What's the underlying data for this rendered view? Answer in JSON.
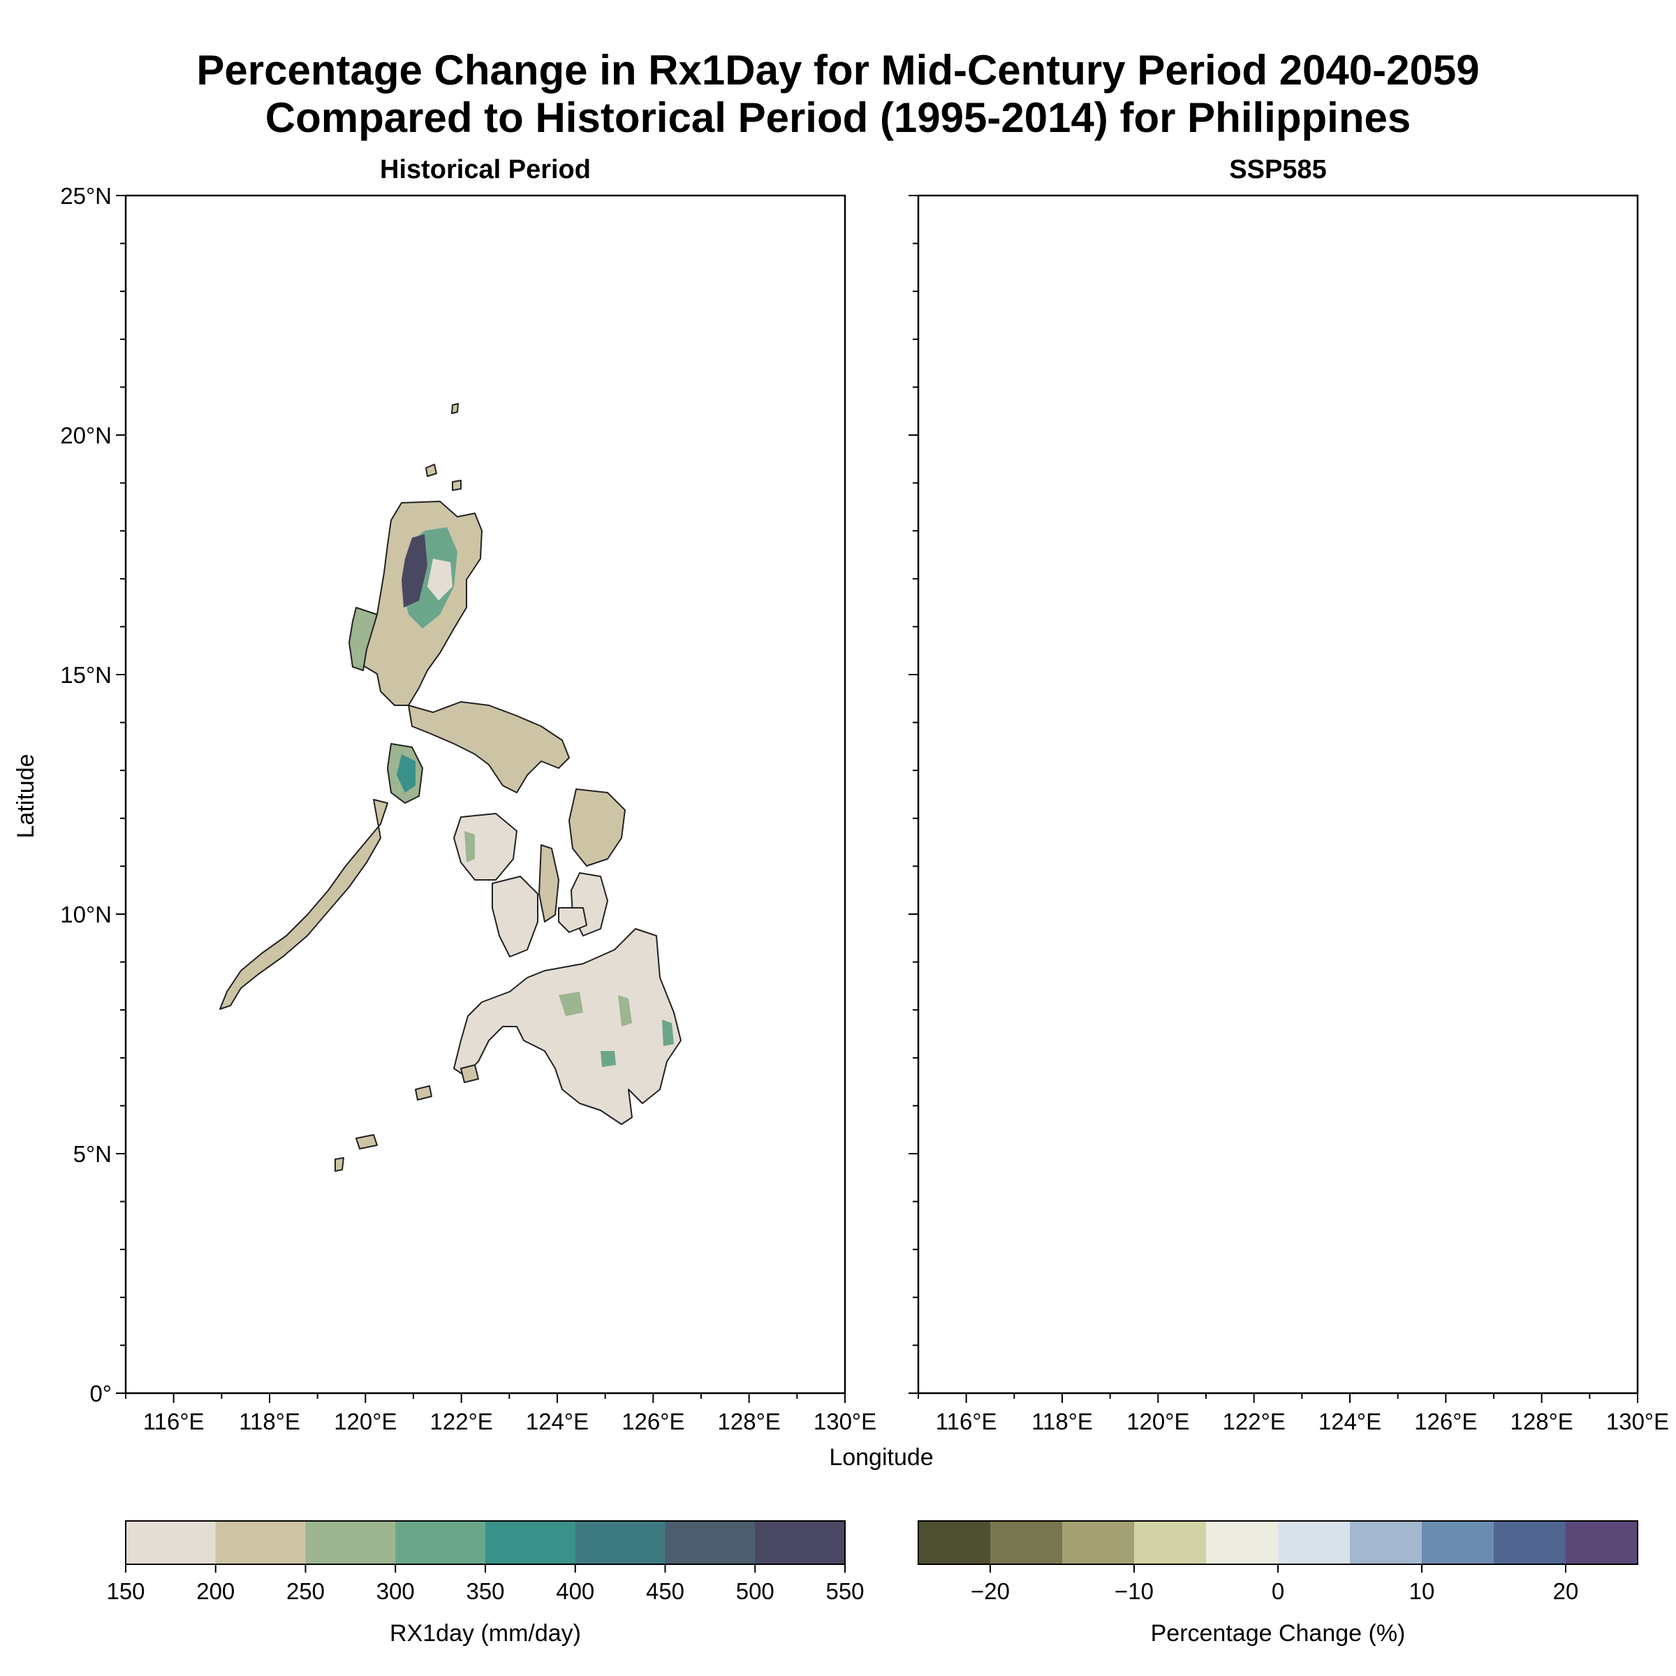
{
  "figure": {
    "title_line1": "Percentage Change in Rx1Day for Mid-Century Period 2040-2059",
    "title_line2": "Compared to Historical Period (1995-2014) for Philippines",
    "xlabel": "Longitude",
    "ylabel": "Latitude"
  },
  "panels": [
    {
      "title": "Historical Period"
    },
    {
      "title": "SSP585"
    }
  ],
  "axes": {
    "x_ticks": [
      "116°E",
      "118°E",
      "120°E",
      "122°E",
      "124°E",
      "126°E",
      "128°E",
      "130°E"
    ],
    "x_values": [
      116,
      118,
      120,
      122,
      124,
      126,
      128,
      130
    ],
    "y_ticks": [
      "0°",
      "5°N",
      "10°N",
      "15°N",
      "20°N",
      "25°N"
    ],
    "y_values": [
      0,
      5,
      10,
      15,
      20,
      25
    ],
    "xlim": [
      115,
      130
    ],
    "ylim": [
      0,
      25
    ]
  },
  "colorbars": [
    {
      "label": "RX1day (mm/day)",
      "ticks": [
        "150",
        "200",
        "250",
        "300",
        "350",
        "400",
        "450",
        "500",
        "550"
      ],
      "colors": [
        "#e4ddd4",
        "#cdc4a5",
        "#9db590",
        "#6ba68b",
        "#3a918a",
        "#3d7a80",
        "#4c5e6e",
        "#4a4762"
      ]
    },
    {
      "label": "Percentage Change (%)",
      "ticks": [
        "−20",
        "−10",
        "0",
        "10",
        "20"
      ],
      "tick_values": [
        -20,
        -10,
        0,
        10,
        20
      ],
      "range": [
        -25,
        25
      ],
      "colors": [
        "#4f4f31",
        "#787650",
        "#a3a073",
        "#d1d3a7",
        "#ecede0",
        "#d9e1eb",
        "#a3b7ce",
        "#6b8cb0",
        "#506691",
        "#5a4876"
      ]
    }
  ]
}
